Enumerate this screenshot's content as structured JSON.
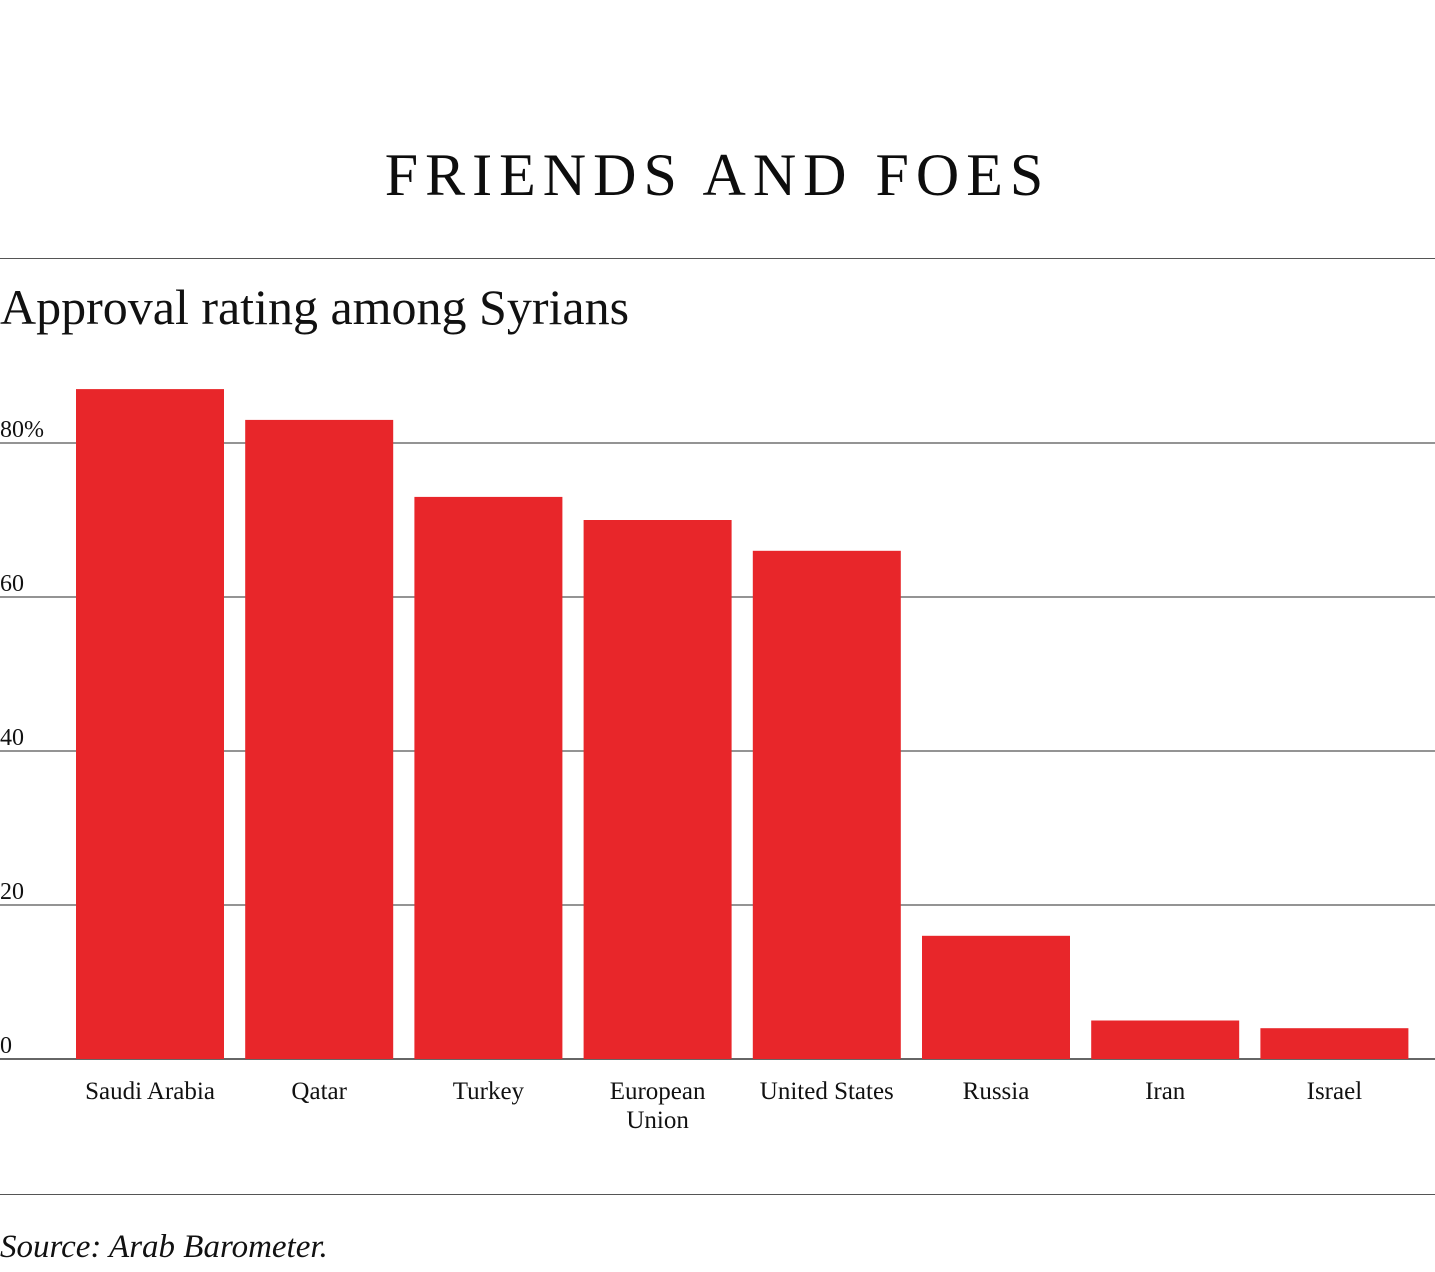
{
  "chart_data": {
    "type": "bar",
    "title": "FRIENDS AND FOES",
    "subtitle": "Approval rating among Syrians",
    "source": "Source: Arab Barometer.",
    "categories": [
      [
        "Saudi Arabia"
      ],
      [
        "Qatar"
      ],
      [
        "Turkey"
      ],
      [
        "European",
        "Union"
      ],
      [
        "United States"
      ],
      [
        "Russia"
      ],
      [
        "Iran"
      ],
      [
        "Israel"
      ]
    ],
    "values": [
      87,
      83,
      73,
      70,
      66,
      16,
      5,
      4
    ],
    "ylim": [
      0,
      80
    ],
    "yticks": [
      0,
      20,
      40,
      60,
      80
    ],
    "ytick_labels": [
      "0",
      "20",
      "40",
      "60",
      "80%"
    ],
    "bar_color": "#e8262a",
    "grid": true,
    "xlabel": "",
    "ylabel": ""
  }
}
